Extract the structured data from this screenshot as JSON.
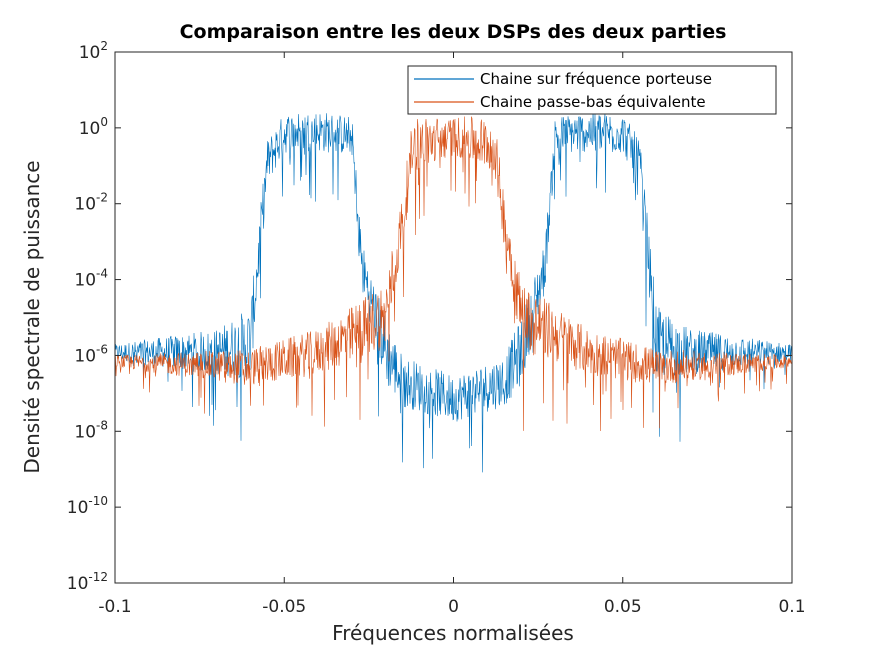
{
  "chart_data": {
    "type": "line",
    "title": "Comparaison entre les deux DSPs des deux parties",
    "xlabel": "Fréquences normalisées",
    "ylabel": "Densité spectrale de puissance",
    "xlim": [
      -0.1,
      0.1
    ],
    "ylim": [
      1e-12,
      100
    ],
    "yscale": "log",
    "x_ticks": [
      -0.1,
      -0.05,
      0,
      0.05,
      0.1
    ],
    "x_tick_labels": [
      "-0.1",
      "-0.05",
      "0",
      "0.05",
      "0.1"
    ],
    "y_ticks": [
      {
        "value": 1e-12,
        "base": "10",
        "exp": "-12"
      },
      {
        "value": 1e-10,
        "base": "10",
        "exp": "-10"
      },
      {
        "value": 1e-08,
        "base": "10",
        "exp": "-8"
      },
      {
        "value": 1e-06,
        "base": "10",
        "exp": "-6"
      },
      {
        "value": 0.0001,
        "base": "10",
        "exp": "-4"
      },
      {
        "value": 0.01,
        "base": "10",
        "exp": "-2"
      },
      {
        "value": 1,
        "base": "10",
        "exp": "0"
      },
      {
        "value": 100,
        "base": "10",
        "exp": "2"
      }
    ],
    "grid": false,
    "legend_position": "top-right",
    "series": [
      {
        "name": "Chaine sur fréquence porteuse",
        "color": "#0072BD",
        "envelope": [
          {
            "x": -0.1,
            "upper": 2e-06,
            "lower": 2e-07
          },
          {
            "x": -0.07,
            "upper": 5e-06,
            "lower": 1e-08
          },
          {
            "x": -0.06,
            "upper": 2e-05,
            "lower": 1e-09
          },
          {
            "x": -0.055,
            "upper": 0.5,
            "lower": 0.001
          },
          {
            "x": -0.05,
            "upper": 2.5,
            "lower": 0.01
          },
          {
            "x": -0.04,
            "upper": 3,
            "lower": 0.01
          },
          {
            "x": -0.03,
            "upper": 2,
            "lower": 0.01
          },
          {
            "x": -0.027,
            "upper": 0.001,
            "lower": 1e-06
          },
          {
            "x": -0.02,
            "upper": 1e-05,
            "lower": 1e-09
          },
          {
            "x": -0.015,
            "upper": 1e-06,
            "lower": 1e-09
          },
          {
            "x": 0,
            "upper": 3e-07,
            "lower": 5e-10
          },
          {
            "x": 0.015,
            "upper": 1e-06,
            "lower": 1e-09
          },
          {
            "x": 0.02,
            "upper": 1e-05,
            "lower": 1e-09
          },
          {
            "x": 0.027,
            "upper": 0.001,
            "lower": 1e-06
          },
          {
            "x": 0.03,
            "upper": 2,
            "lower": 0.01
          },
          {
            "x": 0.04,
            "upper": 3,
            "lower": 0.01
          },
          {
            "x": 0.05,
            "upper": 2.5,
            "lower": 0.01
          },
          {
            "x": 0.055,
            "upper": 0.5,
            "lower": 0.001
          },
          {
            "x": 0.06,
            "upper": 2e-05,
            "lower": 1e-09
          },
          {
            "x": 0.07,
            "upper": 5e-06,
            "lower": 1e-08
          },
          {
            "x": 0.1,
            "upper": 2e-06,
            "lower": 2e-07
          }
        ]
      },
      {
        "name": "Chaine passe-bas équivalente",
        "color": "#D95319",
        "envelope": [
          {
            "x": -0.1,
            "upper": 1e-06,
            "lower": 2e-07
          },
          {
            "x": -0.06,
            "upper": 1.5e-06,
            "lower": 1e-08
          },
          {
            "x": -0.04,
            "upper": 5e-06,
            "lower": 1e-08
          },
          {
            "x": -0.03,
            "upper": 2e-05,
            "lower": 1e-08
          },
          {
            "x": -0.02,
            "upper": 0.0001,
            "lower": 1e-08
          },
          {
            "x": -0.015,
            "upper": 0.02,
            "lower": 1e-05
          },
          {
            "x": -0.012,
            "upper": 2,
            "lower": 0.001
          },
          {
            "x": 0,
            "upper": 2,
            "lower": 0.01
          },
          {
            "x": 0.012,
            "upper": 2,
            "lower": 0.001
          },
          {
            "x": 0.015,
            "upper": 0.02,
            "lower": 1e-05
          },
          {
            "x": 0.02,
            "upper": 0.0001,
            "lower": 1e-08
          },
          {
            "x": 0.03,
            "upper": 2e-05,
            "lower": 1e-08
          },
          {
            "x": 0.04,
            "upper": 5e-06,
            "lower": 1e-08
          },
          {
            "x": 0.06,
            "upper": 1.5e-06,
            "lower": 1e-08
          },
          {
            "x": 0.1,
            "upper": 1e-06,
            "lower": 2e-07
          }
        ]
      }
    ]
  }
}
